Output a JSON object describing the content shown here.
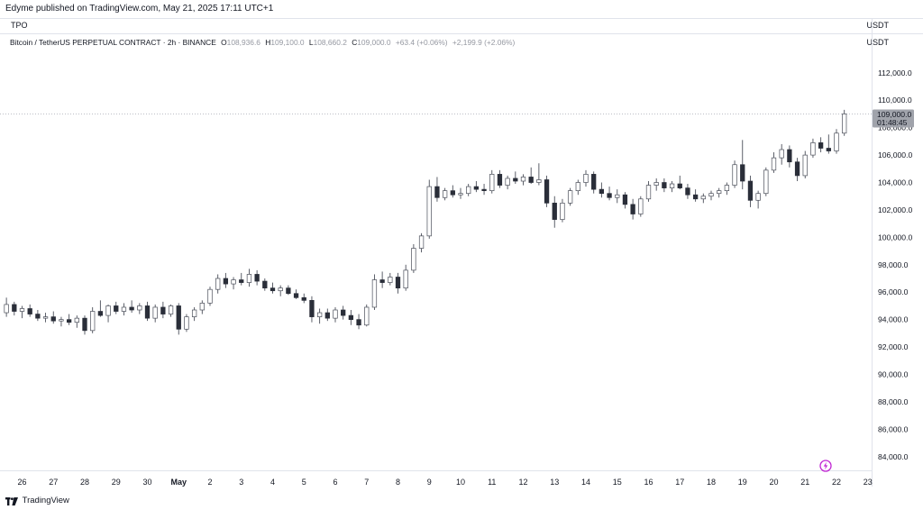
{
  "header": {
    "publish_line": "Edyme published on TradingView.com, May 21, 2025 17:11 UTC+1"
  },
  "pane": {
    "indicator_label": "TPO",
    "unit": "USDT"
  },
  "legend": {
    "symbol": "Bitcoin / TetherUS PERPETUAL CONTRACT · 2h · BINANCE",
    "open_key": "O",
    "open": "108,936.6",
    "high_key": "H",
    "high": "109,100.0",
    "low_key": "L",
    "low": "108,660.2",
    "close_key": "C",
    "close": "109,000.0",
    "change": "+63.4 (+0.06%)",
    "change2": "+2,199.9 (+2.06%)"
  },
  "price_tag": {
    "price": "109,000.0",
    "countdown": "01:48:45"
  },
  "footer": {
    "brand": "TradingView"
  },
  "icons": {
    "logo": "tradingview-logo-icon",
    "bolt": "lightning-icon"
  },
  "colors": {
    "up_body": "#ffffff",
    "down_body": "#2a2e39",
    "wick": "#4a4e59",
    "price_tag_bg": "#a0a3ab",
    "bolt": "#c026d3"
  },
  "chart_data": {
    "type": "candlestick",
    "symbol": "Bitcoin / TetherUS PERPETUAL CONTRACT",
    "interval": "2h",
    "ylim": [
      83000,
      113500
    ],
    "y_ticks": [
      84000,
      86000,
      88000,
      90000,
      92000,
      94000,
      96000,
      98000,
      100000,
      102000,
      104000,
      106000,
      108000,
      110000,
      112000
    ],
    "y_tick_labels": [
      "84,000.0",
      "86,000.0",
      "88,000.0",
      "90,000.0",
      "92,000.0",
      "94,000.0",
      "96,000.0",
      "98,000.0",
      "100,000.0",
      "102,000.0",
      "104,000.0",
      "106,000.0",
      "108,000.0",
      "110,000.0",
      "112,000.0"
    ],
    "x_day_labels": [
      "26",
      "27",
      "28",
      "29",
      "30",
      "May",
      "2",
      "3",
      "4",
      "5",
      "6",
      "7",
      "8",
      "9",
      "10",
      "11",
      "12",
      "13",
      "14",
      "15",
      "16",
      "17",
      "18",
      "19",
      "20",
      "21",
      "22",
      "23"
    ],
    "x_day_index": [
      0,
      1,
      2,
      3,
      4,
      5,
      6,
      7,
      8,
      9,
      10,
      11,
      12,
      13,
      14,
      15,
      16,
      17,
      18,
      19,
      20,
      21,
      22,
      23,
      24,
      25,
      26,
      27
    ],
    "last_price": 109000.0,
    "candles": [
      {
        "d": -0.5,
        "o": 94500,
        "h": 95600,
        "l": 94200,
        "c": 95100
      },
      {
        "d": -0.25,
        "o": 95100,
        "h": 95300,
        "l": 94300,
        "c": 94600
      },
      {
        "d": 0.0,
        "o": 94600,
        "h": 95000,
        "l": 94100,
        "c": 94800
      },
      {
        "d": 0.25,
        "o": 94800,
        "h": 95100,
        "l": 94200,
        "c": 94400
      },
      {
        "d": 0.5,
        "o": 94400,
        "h": 94700,
        "l": 93900,
        "c": 94100
      },
      {
        "d": 0.75,
        "o": 94100,
        "h": 94500,
        "l": 93800,
        "c": 94200
      },
      {
        "d": 1.0,
        "o": 94200,
        "h": 94600,
        "l": 93700,
        "c": 93900
      },
      {
        "d": 1.25,
        "o": 93900,
        "h": 94200,
        "l": 93500,
        "c": 94000
      },
      {
        "d": 1.5,
        "o": 94000,
        "h": 94400,
        "l": 93600,
        "c": 93800
      },
      {
        "d": 1.75,
        "o": 93800,
        "h": 94300,
        "l": 93400,
        "c": 94100
      },
      {
        "d": 2.0,
        "o": 94100,
        "h": 94300,
        "l": 92900,
        "c": 93200
      },
      {
        "d": 2.25,
        "o": 93200,
        "h": 94900,
        "l": 93000,
        "c": 94600
      },
      {
        "d": 2.5,
        "o": 94600,
        "h": 95400,
        "l": 94200,
        "c": 94300
      },
      {
        "d": 2.75,
        "o": 94300,
        "h": 95100,
        "l": 93800,
        "c": 95000
      },
      {
        "d": 3.0,
        "o": 95000,
        "h": 95300,
        "l": 94400,
        "c": 94600
      },
      {
        "d": 3.25,
        "o": 94600,
        "h": 95200,
        "l": 94300,
        "c": 94900
      },
      {
        "d": 3.5,
        "o": 94900,
        "h": 95400,
        "l": 94500,
        "c": 94700
      },
      {
        "d": 3.75,
        "o": 94700,
        "h": 95200,
        "l": 94400,
        "c": 95000
      },
      {
        "d": 4.0,
        "o": 95000,
        "h": 95300,
        "l": 93900,
        "c": 94100
      },
      {
        "d": 4.25,
        "o": 94100,
        "h": 95100,
        "l": 93800,
        "c": 94900
      },
      {
        "d": 4.5,
        "o": 94900,
        "h": 95300,
        "l": 94100,
        "c": 94400
      },
      {
        "d": 4.75,
        "o": 94400,
        "h": 95100,
        "l": 94200,
        "c": 95000
      },
      {
        "d": 5.0,
        "o": 95000,
        "h": 95200,
        "l": 92900,
        "c": 93300
      },
      {
        "d": 5.25,
        "o": 93300,
        "h": 94400,
        "l": 93100,
        "c": 94200
      },
      {
        "d": 5.5,
        "o": 94200,
        "h": 94900,
        "l": 93900,
        "c": 94700
      },
      {
        "d": 5.75,
        "o": 94700,
        "h": 95400,
        "l": 94400,
        "c": 95200
      },
      {
        "d": 6.0,
        "o": 95200,
        "h": 96400,
        "l": 95000,
        "c": 96200
      },
      {
        "d": 6.25,
        "o": 96200,
        "h": 97300,
        "l": 95900,
        "c": 97000
      },
      {
        "d": 6.5,
        "o": 97000,
        "h": 97400,
        "l": 96300,
        "c": 96600
      },
      {
        "d": 6.75,
        "o": 96600,
        "h": 97100,
        "l": 96200,
        "c": 96900
      },
      {
        "d": 7.0,
        "o": 96900,
        "h": 97400,
        "l": 96500,
        "c": 96700
      },
      {
        "d": 7.25,
        "o": 96700,
        "h": 97700,
        "l": 96400,
        "c": 97300
      },
      {
        "d": 7.5,
        "o": 97300,
        "h": 97600,
        "l": 96500,
        "c": 96800
      },
      {
        "d": 7.75,
        "o": 96800,
        "h": 97000,
        "l": 96100,
        "c": 96300
      },
      {
        "d": 8.0,
        "o": 96300,
        "h": 96700,
        "l": 95900,
        "c": 96100
      },
      {
        "d": 8.25,
        "o": 96100,
        "h": 96500,
        "l": 95700,
        "c": 96300
      },
      {
        "d": 8.5,
        "o": 96300,
        "h": 96500,
        "l": 95800,
        "c": 95900
      },
      {
        "d": 8.75,
        "o": 95900,
        "h": 96200,
        "l": 95500,
        "c": 95600
      },
      {
        "d": 9.0,
        "o": 95600,
        "h": 95900,
        "l": 95200,
        "c": 95400
      },
      {
        "d": 9.25,
        "o": 95400,
        "h": 95700,
        "l": 93800,
        "c": 94200
      },
      {
        "d": 9.5,
        "o": 94200,
        "h": 94800,
        "l": 93700,
        "c": 94500
      },
      {
        "d": 9.75,
        "o": 94500,
        "h": 94800,
        "l": 93900,
        "c": 94100
      },
      {
        "d": 10.0,
        "o": 94100,
        "h": 94900,
        "l": 93800,
        "c": 94700
      },
      {
        "d": 10.25,
        "o": 94700,
        "h": 95000,
        "l": 94000,
        "c": 94300
      },
      {
        "d": 10.5,
        "o": 94300,
        "h": 94700,
        "l": 93600,
        "c": 94000
      },
      {
        "d": 10.75,
        "o": 94000,
        "h": 94400,
        "l": 93300,
        "c": 93600
      },
      {
        "d": 11.0,
        "o": 93600,
        "h": 95100,
        "l": 93500,
        "c": 94900
      },
      {
        "d": 11.25,
        "o": 94900,
        "h": 97300,
        "l": 94700,
        "c": 96900
      },
      {
        "d": 11.5,
        "o": 96900,
        "h": 97500,
        "l": 96300,
        "c": 96700
      },
      {
        "d": 11.75,
        "o": 96700,
        "h": 97400,
        "l": 96500,
        "c": 97100
      },
      {
        "d": 12.0,
        "o": 97100,
        "h": 97400,
        "l": 95900,
        "c": 96300
      },
      {
        "d": 12.25,
        "o": 96300,
        "h": 98000,
        "l": 96100,
        "c": 97600
      },
      {
        "d": 12.5,
        "o": 97600,
        "h": 99500,
        "l": 97400,
        "c": 99200
      },
      {
        "d": 12.75,
        "o": 99200,
        "h": 100300,
        "l": 98900,
        "c": 100100
      },
      {
        "d": 13.0,
        "o": 100100,
        "h": 104200,
        "l": 99900,
        "c": 103700
      },
      {
        "d": 13.25,
        "o": 103700,
        "h": 104400,
        "l": 102600,
        "c": 102900
      },
      {
        "d": 13.5,
        "o": 102900,
        "h": 103600,
        "l": 102700,
        "c": 103400
      },
      {
        "d": 13.75,
        "o": 103400,
        "h": 103800,
        "l": 102900,
        "c": 103100
      },
      {
        "d": 14.0,
        "o": 103100,
        "h": 103600,
        "l": 102800,
        "c": 103200
      },
      {
        "d": 14.25,
        "o": 103200,
        "h": 103900,
        "l": 103000,
        "c": 103700
      },
      {
        "d": 14.5,
        "o": 103700,
        "h": 104100,
        "l": 103300,
        "c": 103500
      },
      {
        "d": 14.75,
        "o": 103500,
        "h": 103900,
        "l": 103100,
        "c": 103400
      },
      {
        "d": 15.0,
        "o": 103400,
        "h": 104900,
        "l": 103200,
        "c": 104600
      },
      {
        "d": 15.25,
        "o": 104600,
        "h": 104900,
        "l": 103600,
        "c": 103800
      },
      {
        "d": 15.5,
        "o": 103800,
        "h": 104500,
        "l": 103500,
        "c": 104300
      },
      {
        "d": 15.75,
        "o": 104300,
        "h": 104800,
        "l": 103900,
        "c": 104100
      },
      {
        "d": 16.0,
        "o": 104100,
        "h": 104600,
        "l": 103800,
        "c": 104400
      },
      {
        "d": 16.25,
        "o": 104400,
        "h": 105100,
        "l": 103900,
        "c": 104000
      },
      {
        "d": 16.5,
        "o": 104000,
        "h": 105400,
        "l": 103800,
        "c": 104200
      },
      {
        "d": 16.75,
        "o": 104200,
        "h": 104500,
        "l": 102200,
        "c": 102500
      },
      {
        "d": 17.0,
        "o": 102500,
        "h": 103000,
        "l": 100700,
        "c": 101300
      },
      {
        "d": 17.25,
        "o": 101300,
        "h": 102800,
        "l": 101100,
        "c": 102500
      },
      {
        "d": 17.5,
        "o": 102500,
        "h": 103600,
        "l": 102300,
        "c": 103400
      },
      {
        "d": 17.75,
        "o": 103400,
        "h": 104200,
        "l": 103100,
        "c": 104000
      },
      {
        "d": 18.0,
        "o": 104000,
        "h": 104900,
        "l": 103700,
        "c": 104600
      },
      {
        "d": 18.25,
        "o": 104600,
        "h": 104800,
        "l": 103200,
        "c": 103500
      },
      {
        "d": 18.5,
        "o": 103500,
        "h": 104000,
        "l": 102900,
        "c": 103200
      },
      {
        "d": 18.75,
        "o": 103200,
        "h": 103700,
        "l": 102700,
        "c": 102900
      },
      {
        "d": 19.0,
        "o": 102900,
        "h": 103500,
        "l": 102500,
        "c": 103100
      },
      {
        "d": 19.25,
        "o": 103100,
        "h": 103300,
        "l": 102100,
        "c": 102400
      },
      {
        "d": 19.5,
        "o": 102400,
        "h": 102800,
        "l": 101300,
        "c": 101700
      },
      {
        "d": 19.75,
        "o": 101700,
        "h": 103000,
        "l": 101500,
        "c": 102800
      },
      {
        "d": 20.0,
        "o": 102800,
        "h": 104100,
        "l": 102600,
        "c": 103800
      },
      {
        "d": 20.25,
        "o": 103800,
        "h": 104300,
        "l": 103400,
        "c": 104000
      },
      {
        "d": 20.5,
        "o": 104000,
        "h": 104300,
        "l": 103300,
        "c": 103600
      },
      {
        "d": 20.75,
        "o": 103600,
        "h": 104100,
        "l": 103300,
        "c": 103900
      },
      {
        "d": 21.0,
        "o": 103900,
        "h": 104500,
        "l": 103500,
        "c": 103600
      },
      {
        "d": 21.25,
        "o": 103600,
        "h": 103900,
        "l": 102800,
        "c": 103100
      },
      {
        "d": 21.5,
        "o": 103100,
        "h": 103500,
        "l": 102600,
        "c": 102800
      },
      {
        "d": 21.75,
        "o": 102800,
        "h": 103200,
        "l": 102500,
        "c": 103000
      },
      {
        "d": 22.0,
        "o": 103000,
        "h": 103400,
        "l": 102700,
        "c": 103200
      },
      {
        "d": 22.25,
        "o": 103200,
        "h": 103600,
        "l": 102900,
        "c": 103400
      },
      {
        "d": 22.5,
        "o": 103400,
        "h": 104000,
        "l": 103100,
        "c": 103800
      },
      {
        "d": 22.75,
        "o": 103800,
        "h": 105600,
        "l": 103600,
        "c": 105300
      },
      {
        "d": 23.0,
        "o": 105300,
        "h": 107100,
        "l": 103500,
        "c": 104100
      },
      {
        "d": 23.25,
        "o": 104100,
        "h": 104500,
        "l": 102200,
        "c": 102700
      },
      {
        "d": 23.5,
        "o": 102700,
        "h": 103400,
        "l": 102100,
        "c": 103200
      },
      {
        "d": 23.75,
        "o": 103200,
        "h": 105100,
        "l": 103000,
        "c": 104900
      },
      {
        "d": 24.0,
        "o": 104900,
        "h": 106200,
        "l": 104700,
        "c": 105800
      },
      {
        "d": 24.25,
        "o": 105800,
        "h": 106800,
        "l": 105300,
        "c": 106400
      },
      {
        "d": 24.5,
        "o": 106400,
        "h": 106700,
        "l": 105100,
        "c": 105500
      },
      {
        "d": 24.75,
        "o": 105500,
        "h": 105800,
        "l": 104100,
        "c": 104500
      },
      {
        "d": 25.0,
        "o": 104500,
        "h": 106300,
        "l": 104300,
        "c": 106000
      },
      {
        "d": 25.25,
        "o": 106000,
        "h": 107200,
        "l": 105800,
        "c": 106900
      },
      {
        "d": 25.5,
        "o": 106900,
        "h": 107300,
        "l": 106200,
        "c": 106500
      },
      {
        "d": 25.75,
        "o": 106500,
        "h": 107500,
        "l": 106100,
        "c": 106300
      },
      {
        "d": 26.0,
        "o": 106300,
        "h": 107900,
        "l": 106100,
        "c": 107600
      },
      {
        "d": 26.25,
        "o": 107600,
        "h": 109300,
        "l": 107400,
        "c": 109000
      }
    ]
  }
}
